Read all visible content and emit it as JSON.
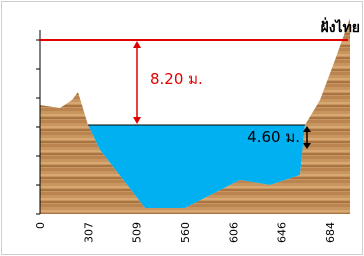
{
  "bank_label": "ฝั่งไทย",
  "annotations": {
    "flood_depth": "8.20 ม.",
    "water_depth": "4.60 ม."
  },
  "x_axis": {
    "labels": [
      "0",
      "307",
      "509",
      "560",
      "606",
      "646",
      "684"
    ]
  }
}
